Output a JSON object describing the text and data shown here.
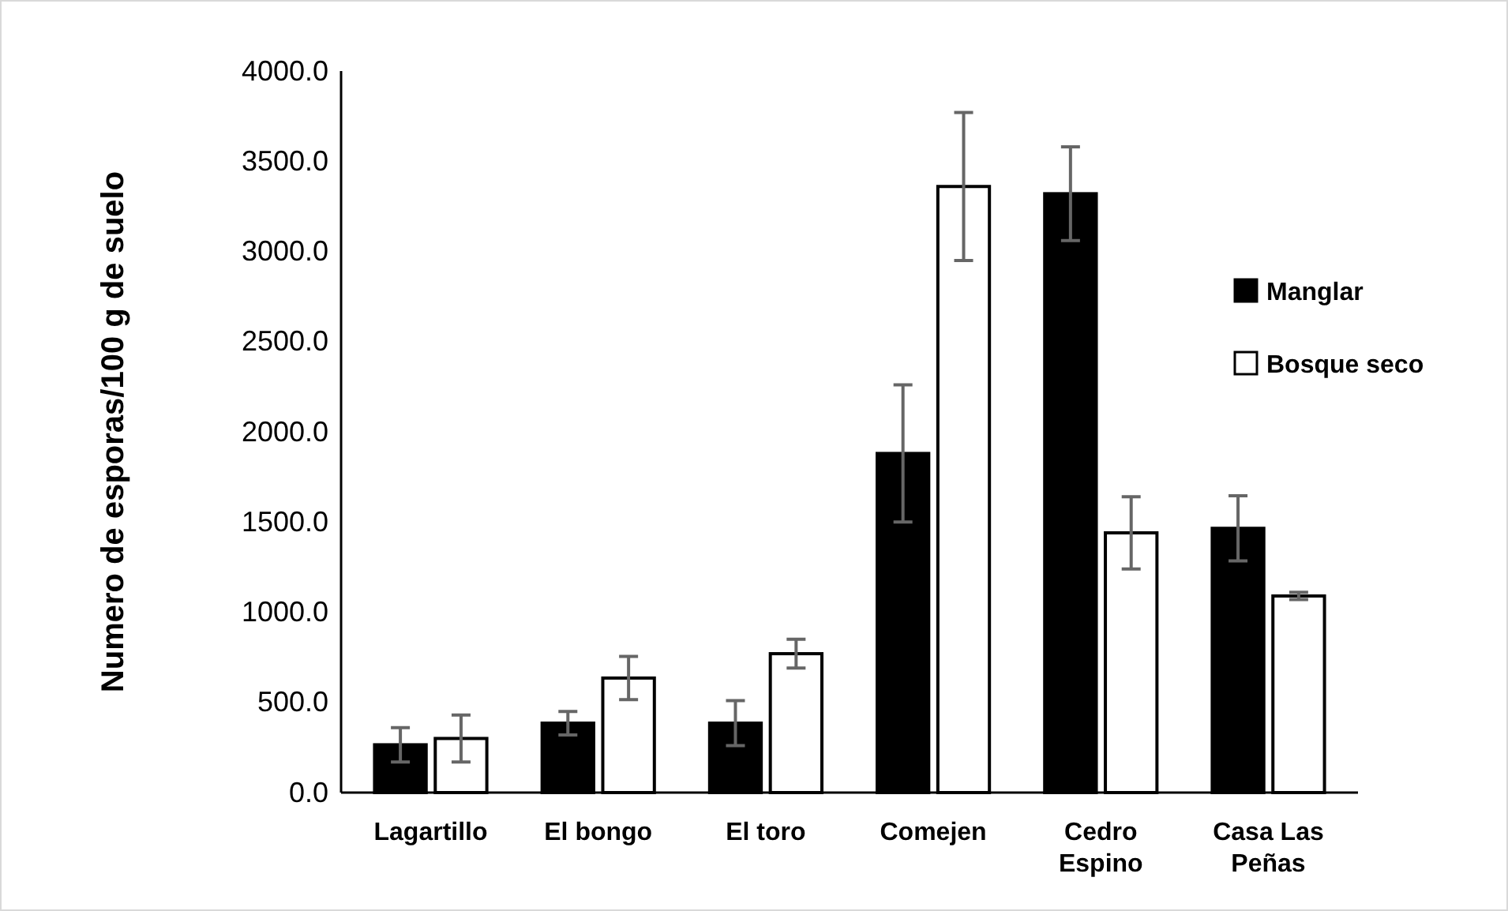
{
  "chart_data": {
    "type": "bar",
    "ylabel": "Numero de esporas/100 g de suelo",
    "categories": [
      "Lagartillo",
      "El bongo",
      "El toro",
      "Comejen",
      "Cedro Espino",
      "Casa Las Peñas"
    ],
    "series": [
      {
        "name": "Manglar",
        "color": "#000000",
        "values": [
          265,
          385,
          385,
          1880,
          3320,
          1465
        ],
        "errors": [
          95,
          65,
          125,
          380,
          260,
          180
        ]
      },
      {
        "name": "Bosque seco",
        "color": "#ffffff",
        "values": [
          300,
          635,
          770,
          3360,
          1440,
          1090
        ],
        "errors": [
          130,
          120,
          80,
          410,
          200,
          20
        ]
      }
    ],
    "ylim": [
      0,
      4000
    ],
    "yticks": [
      {
        "value": 0,
        "label": "0.0"
      },
      {
        "value": 500,
        "label": "500.0"
      },
      {
        "value": 1000,
        "label": "1000.0"
      },
      {
        "value": 1500,
        "label": "1500.0"
      },
      {
        "value": 2000,
        "label": "2000.0"
      },
      {
        "value": 2500,
        "label": "2500.0"
      },
      {
        "value": 3000,
        "label": "3000.0"
      },
      {
        "value": 3500,
        "label": "3500.0"
      },
      {
        "value": 4000,
        "label": "4000.0"
      }
    ],
    "grid": false,
    "legend": "right"
  }
}
